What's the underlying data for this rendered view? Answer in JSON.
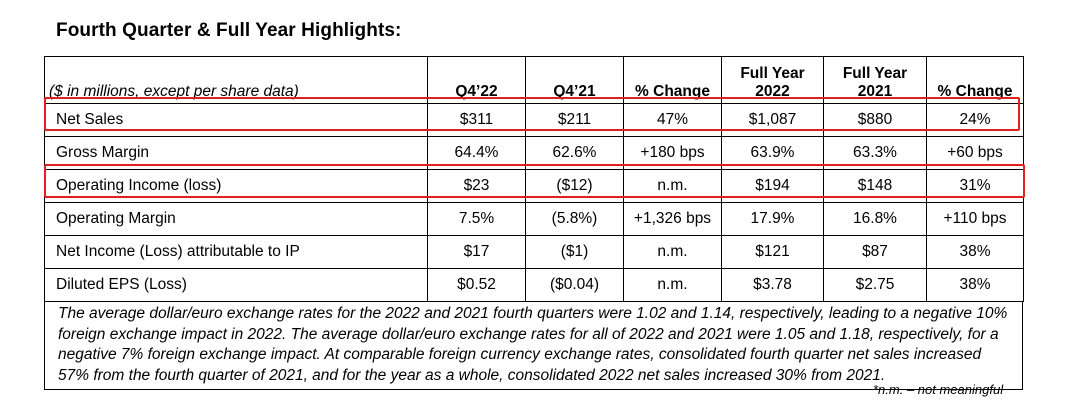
{
  "title": "Fourth Quarter & Full Year Highlights:",
  "header": {
    "subtitle": "($ in millions, except per share data)",
    "columns": [
      {
        "line1": "",
        "line2": "Q4’22"
      },
      {
        "line1": "",
        "line2": "Q4’21"
      },
      {
        "line1": "",
        "line2": "% Change"
      },
      {
        "line1": "Full Year",
        "line2": "2022"
      },
      {
        "line1": "Full Year",
        "line2": "2021"
      },
      {
        "line1": "",
        "line2": "% Change"
      }
    ]
  },
  "rows": [
    {
      "label": "Net Sales",
      "values": [
        "$311",
        "$211",
        "47%",
        "$1,087",
        "$880",
        "24%"
      ],
      "highlighted": true
    },
    {
      "label": "Gross Margin",
      "values": [
        "64.4%",
        "62.6%",
        "+180 bps",
        "63.9%",
        "63.3%",
        "+60 bps"
      ],
      "highlighted": false
    },
    {
      "label": "Operating Income (loss)",
      "values": [
        "$23",
        "($12)",
        "n.m.",
        "$194",
        "$148",
        "31%"
      ],
      "highlighted": true
    },
    {
      "label": "Operating Margin",
      "values": [
        "7.5%",
        "(5.8%)",
        "+1,326 bps",
        "17.9%",
        "16.8%",
        "+110 bps"
      ],
      "highlighted": false
    },
    {
      "label": "Net Income (Loss) attributable to IP",
      "values": [
        "$17",
        "($1)",
        "n.m.",
        "$121",
        "$87",
        "38%"
      ],
      "highlighted": false
    },
    {
      "label": "Diluted EPS (Loss)",
      "values": [
        "$0.52",
        "($0.04)",
        "n.m.",
        "$3.78",
        "$2.75",
        "38%"
      ],
      "highlighted": false
    }
  ],
  "note": "The average dollar/euro exchange rates for the 2022 and 2021 fourth quarters were 1.02 and 1.14, respectively, leading to a negative 10% foreign exchange impact in 2022.  The average dollar/euro exchange rates for all of 2022 and 2021 were 1.05 and 1.18, respectively, for a negative 7% foreign exchange impact.  At comparable foreign currency exchange rates, consolidated fourth quarter net sales increased 57% from the fourth quarter of 2021, and for the year as a whole, consolidated 2022 net sales increased 30% from 2021.",
  "footnote": "*n.m. – not meaningful",
  "colors": {
    "highlight": "#e0201a",
    "text": "#000000",
    "background": "#ffffff"
  }
}
